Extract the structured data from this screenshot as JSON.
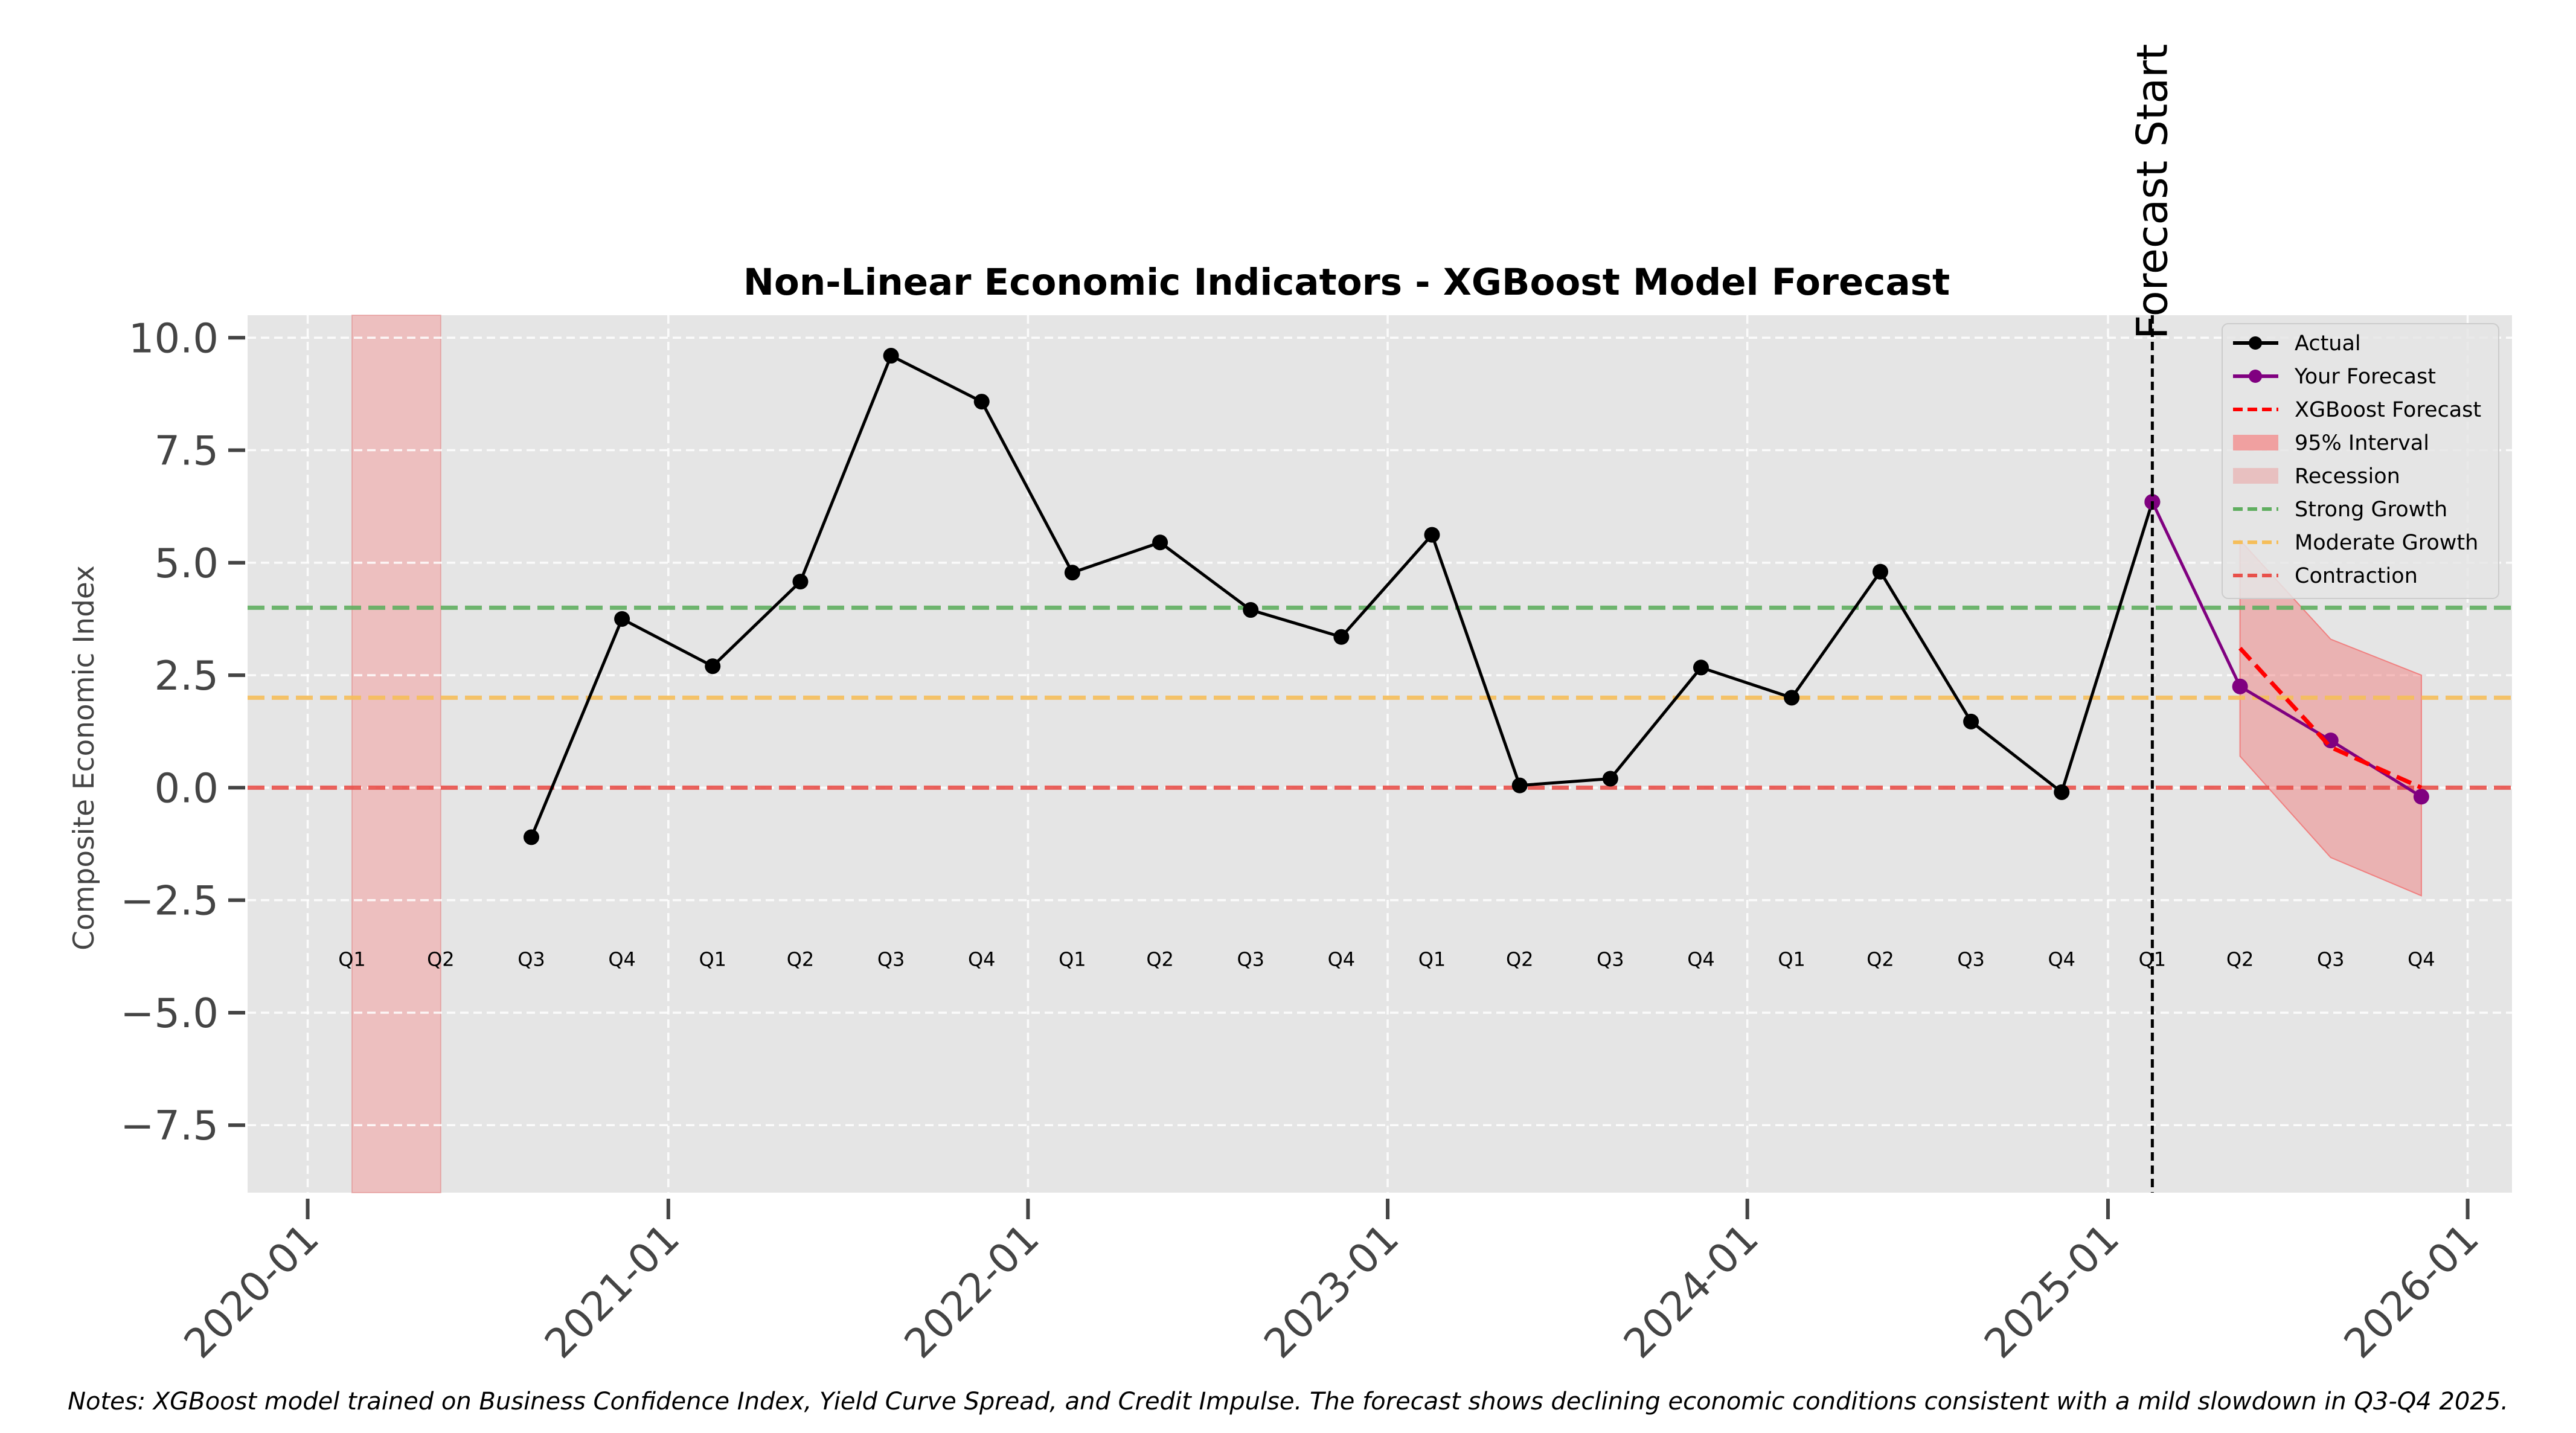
{
  "chart_data": {
    "type": "line",
    "title": "Non-Linear Economic Indicators - XGBoost Model Forecast",
    "xlabel": "",
    "ylabel": "Composite Economic Index",
    "ylim": [
      -9.0,
      10.5
    ],
    "xlim": [
      "2019-11-01",
      "2026-02-15"
    ],
    "x_ticks": [
      "2020-01",
      "2021-01",
      "2022-01",
      "2023-01",
      "2024-01",
      "2025-01",
      "2026-01"
    ],
    "y_ticks": [
      10.0,
      7.5,
      5.0,
      2.5,
      0.0,
      -2.5,
      -5.0,
      -7.5
    ],
    "y_tick_labels": [
      "10.0",
      "7.5",
      "5.0",
      "2.5",
      "0.0",
      "−2.5",
      "−5.0",
      "−7.5"
    ],
    "grid": true,
    "legend_position": "top-right",
    "quarter_labels": [
      {
        "date": "2020-02-15",
        "label": "Q1"
      },
      {
        "date": "2020-05-15",
        "label": "Q2"
      },
      {
        "date": "2020-08-15",
        "label": "Q3"
      },
      {
        "date": "2020-11-15",
        "label": "Q4"
      },
      {
        "date": "2021-02-15",
        "label": "Q1"
      },
      {
        "date": "2021-05-15",
        "label": "Q2"
      },
      {
        "date": "2021-08-15",
        "label": "Q3"
      },
      {
        "date": "2021-11-15",
        "label": "Q4"
      },
      {
        "date": "2022-02-15",
        "label": "Q1"
      },
      {
        "date": "2022-05-15",
        "label": "Q2"
      },
      {
        "date": "2022-08-15",
        "label": "Q3"
      },
      {
        "date": "2022-11-15",
        "label": "Q4"
      },
      {
        "date": "2023-02-15",
        "label": "Q1"
      },
      {
        "date": "2023-05-15",
        "label": "Q2"
      },
      {
        "date": "2023-08-15",
        "label": "Q3"
      },
      {
        "date": "2023-11-15",
        "label": "Q4"
      },
      {
        "date": "2024-02-15",
        "label": "Q1"
      },
      {
        "date": "2024-05-15",
        "label": "Q2"
      },
      {
        "date": "2024-08-15",
        "label": "Q3"
      },
      {
        "date": "2024-11-15",
        "label": "Q4"
      },
      {
        "date": "2025-02-15",
        "label": "Q1"
      },
      {
        "date": "2025-05-15",
        "label": "Q2"
      },
      {
        "date": "2025-08-15",
        "label": "Q3"
      },
      {
        "date": "2025-11-15",
        "label": "Q4"
      }
    ],
    "quarter_label_y": -3.8,
    "series": [
      {
        "name": "Actual",
        "color": "#000000",
        "marker": "circle",
        "line_style": "solid",
        "points": [
          {
            "x": "2020-08-15",
            "y": -1.1
          },
          {
            "x": "2020-11-15",
            "y": 3.75
          },
          {
            "x": "2021-02-15",
            "y": 2.7
          },
          {
            "x": "2021-05-15",
            "y": 4.58
          },
          {
            "x": "2021-08-15",
            "y": 9.6
          },
          {
            "x": "2021-11-15",
            "y": 8.58
          },
          {
            "x": "2022-02-15",
            "y": 4.78
          },
          {
            "x": "2022-05-15",
            "y": 5.45
          },
          {
            "x": "2022-08-15",
            "y": 3.95
          },
          {
            "x": "2022-11-15",
            "y": 3.35
          },
          {
            "x": "2023-02-15",
            "y": 5.62
          },
          {
            "x": "2023-05-15",
            "y": 0.05
          },
          {
            "x": "2023-08-15",
            "y": 0.2
          },
          {
            "x": "2023-11-15",
            "y": 2.67
          },
          {
            "x": "2024-02-15",
            "y": 2.0
          },
          {
            "x": "2024-05-15",
            "y": 4.8
          },
          {
            "x": "2024-08-15",
            "y": 1.47
          },
          {
            "x": "2024-11-15",
            "y": -0.1
          },
          {
            "x": "2025-02-15",
            "y": 6.35
          }
        ]
      },
      {
        "name": "Your Forecast",
        "color": "#800080",
        "marker": "circle",
        "line_style": "solid",
        "points": [
          {
            "x": "2025-02-15",
            "y": 6.35
          },
          {
            "x": "2025-05-15",
            "y": 2.25
          },
          {
            "x": "2025-08-15",
            "y": 1.05
          },
          {
            "x": "2025-11-15",
            "y": -0.2
          }
        ]
      },
      {
        "name": "XGBoost Forecast",
        "color": "#ff0000",
        "marker": "none",
        "line_style": "dashed",
        "points": [
          {
            "x": "2025-05-15",
            "y": 3.1
          },
          {
            "x": "2025-08-15",
            "y": 0.9
          },
          {
            "x": "2025-11-15",
            "y": 0.0
          }
        ]
      }
    ],
    "interval": {
      "name": "95% Interval",
      "color": "#f08080",
      "points": [
        {
          "x": "2025-05-15",
          "lower": 0.7,
          "upper": 5.5
        },
        {
          "x": "2025-08-15",
          "lower": -1.55,
          "upper": 3.3
        },
        {
          "x": "2025-11-15",
          "lower": -2.4,
          "upper": 2.5
        }
      ]
    },
    "recession": {
      "name": "Recession",
      "color": "#f4a0a0",
      "start": "2020-02-15",
      "end": "2020-05-15"
    },
    "reference_lines": [
      {
        "name": "Strong Growth",
        "y": 4.0,
        "color": "#5fae5f"
      },
      {
        "name": "Moderate Growth",
        "y": 2.0,
        "color": "#f5be5a"
      },
      {
        "name": "Contraction",
        "y": 0.0,
        "color": "#e8504a"
      }
    ],
    "forecast_start": {
      "x": "2025-02-15",
      "label": "Forecast Start"
    },
    "legend": [
      {
        "label": "Actual",
        "kind": "line-marker",
        "color": "#000000"
      },
      {
        "label": "Your Forecast",
        "kind": "line-marker",
        "color": "#800080"
      },
      {
        "label": "XGBoost Forecast",
        "kind": "dashed",
        "color": "#ff0000"
      },
      {
        "label": "95% Interval",
        "kind": "patch",
        "color": "#f0a0a0"
      },
      {
        "label": "Recession",
        "kind": "patch",
        "color": "#e8c0c0"
      },
      {
        "label": "Strong Growth",
        "kind": "dashed",
        "color": "#5fae5f"
      },
      {
        "label": "Moderate Growth",
        "kind": "dashed",
        "color": "#f5be5a"
      },
      {
        "label": "Contraction",
        "kind": "dashed",
        "color": "#e8504a"
      }
    ],
    "note": "Notes: XGBoost model trained on Business Confidence Index, Yield Curve Spread, and Credit Impulse. The forecast shows declining economic conditions consistent with a mild slowdown in Q3-Q4 2025."
  }
}
